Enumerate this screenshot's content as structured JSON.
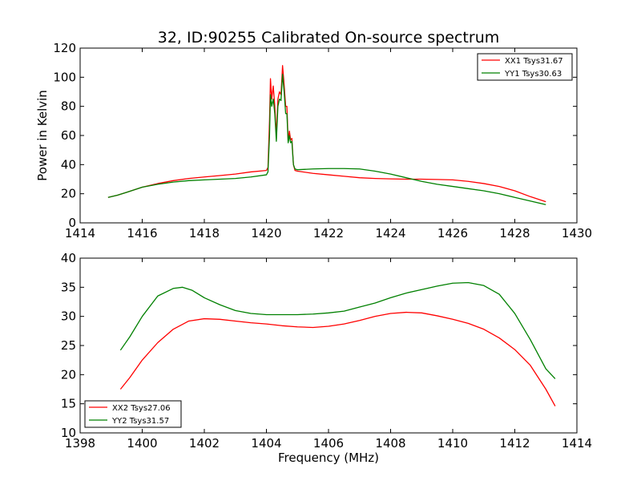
{
  "title": "32, ID:90255 Calibrated On-source spectrum",
  "colors": {
    "xx": "#ff0000",
    "yy": "#008000"
  },
  "chart_data": [
    {
      "type": "line",
      "title": "32, ID:90255 Calibrated On-source spectrum",
      "xlabel": "",
      "ylabel": "Power in Kelvin",
      "xlim": [
        1414,
        1430
      ],
      "ylim": [
        0,
        120
      ],
      "xticks": [
        1414,
        1416,
        1418,
        1420,
        1422,
        1424,
        1426,
        1428,
        1430
      ],
      "yticks": [
        0,
        20,
        40,
        60,
        80,
        100,
        120
      ],
      "legend_position": "top-right",
      "grid": false,
      "series": [
        {
          "name": "XX1 Tsys31.67",
          "color": "#ff0000",
          "points": [
            [
              1414.9,
              17.5
            ],
            [
              1415.2,
              19
            ],
            [
              1415.5,
              21
            ],
            [
              1416,
              24.5
            ],
            [
              1416.5,
              27
            ],
            [
              1417,
              29
            ],
            [
              1417.5,
              30.5
            ],
            [
              1418,
              31.5
            ],
            [
              1418.5,
              32.5
            ],
            [
              1419,
              33.5
            ],
            [
              1419.5,
              35
            ],
            [
              1420,
              36
            ],
            [
              1420.05,
              38
            ],
            [
              1420.1,
              70
            ],
            [
              1420.13,
              99
            ],
            [
              1420.17,
              85
            ],
            [
              1420.22,
              94
            ],
            [
              1420.27,
              80
            ],
            [
              1420.32,
              60
            ],
            [
              1420.37,
              85
            ],
            [
              1420.42,
              90
            ],
            [
              1420.47,
              88
            ],
            [
              1420.52,
              108
            ],
            [
              1420.57,
              95
            ],
            [
              1420.62,
              80
            ],
            [
              1420.66,
              80
            ],
            [
              1420.7,
              56
            ],
            [
              1420.74,
              63
            ],
            [
              1420.78,
              57
            ],
            [
              1420.82,
              58
            ],
            [
              1420.87,
              40
            ],
            [
              1420.92,
              36
            ],
            [
              1421,
              35.5
            ],
            [
              1421.5,
              34
            ],
            [
              1422,
              33
            ],
            [
              1422.5,
              32
            ],
            [
              1423,
              31
            ],
            [
              1423.5,
              30.5
            ],
            [
              1424,
              30.2
            ],
            [
              1424.5,
              30
            ],
            [
              1425,
              30
            ],
            [
              1425.5,
              29.8
            ],
            [
              1426,
              29.5
            ],
            [
              1426.5,
              28.5
            ],
            [
              1427,
              27
            ],
            [
              1427.5,
              25
            ],
            [
              1428,
              22
            ],
            [
              1428.5,
              18
            ],
            [
              1429,
              14.5
            ]
          ]
        },
        {
          "name": "YY1 Tsys30.63",
          "color": "#008000",
          "points": [
            [
              1414.9,
              17.5
            ],
            [
              1415.2,
              19
            ],
            [
              1415.5,
              21
            ],
            [
              1416,
              24.5
            ],
            [
              1416.5,
              26.5
            ],
            [
              1417,
              28
            ],
            [
              1417.5,
              29
            ],
            [
              1418,
              29.5
            ],
            [
              1418.5,
              30
            ],
            [
              1419,
              30.5
            ],
            [
              1419.5,
              31.5
            ],
            [
              1420,
              33
            ],
            [
              1420.05,
              35
            ],
            [
              1420.1,
              60
            ],
            [
              1420.13,
              88
            ],
            [
              1420.17,
              80
            ],
            [
              1420.22,
              85
            ],
            [
              1420.27,
              75
            ],
            [
              1420.32,
              56
            ],
            [
              1420.37,
              80
            ],
            [
              1420.42,
              85
            ],
            [
              1420.47,
              84
            ],
            [
              1420.52,
              102
            ],
            [
              1420.57,
              90
            ],
            [
              1420.62,
              75
            ],
            [
              1420.66,
              75
            ],
            [
              1420.7,
              55
            ],
            [
              1420.74,
              60
            ],
            [
              1420.78,
              55
            ],
            [
              1420.82,
              56
            ],
            [
              1420.87,
              40
            ],
            [
              1420.92,
              37
            ],
            [
              1421,
              36.5
            ],
            [
              1421.5,
              37
            ],
            [
              1422,
              37.3
            ],
            [
              1422.5,
              37.3
            ],
            [
              1423,
              37
            ],
            [
              1423.5,
              35.5
            ],
            [
              1424,
              33.5
            ],
            [
              1424.5,
              31
            ],
            [
              1425,
              28.5
            ],
            [
              1425.5,
              26.5
            ],
            [
              1426,
              25
            ],
            [
              1426.5,
              23.5
            ],
            [
              1427,
              22
            ],
            [
              1427.5,
              20
            ],
            [
              1428,
              17.5
            ],
            [
              1428.5,
              15
            ],
            [
              1429,
              12.5
            ]
          ]
        }
      ]
    },
    {
      "type": "line",
      "title": "",
      "xlabel": "Frequency (MHz)",
      "ylabel": "",
      "xlim": [
        1398,
        1414
      ],
      "ylim": [
        10,
        40
      ],
      "xticks": [
        1398,
        1400,
        1402,
        1404,
        1406,
        1408,
        1410,
        1412,
        1414
      ],
      "yticks": [
        10,
        15,
        20,
        25,
        30,
        35,
        40
      ],
      "legend_position": "bottom-left",
      "grid": false,
      "series": [
        {
          "name": "XX2 Tsys27.06",
          "color": "#ff0000",
          "points": [
            [
              1399.3,
              17.5
            ],
            [
              1399.6,
              19.5
            ],
            [
              1400,
              22.5
            ],
            [
              1400.5,
              25.5
            ],
            [
              1401,
              27.8
            ],
            [
              1401.5,
              29.2
            ],
            [
              1402,
              29.6
            ],
            [
              1402.5,
              29.5
            ],
            [
              1403,
              29.2
            ],
            [
              1403.5,
              28.9
            ],
            [
              1404,
              28.7
            ],
            [
              1404.5,
              28.4
            ],
            [
              1405,
              28.2
            ],
            [
              1405.5,
              28.1
            ],
            [
              1406,
              28.3
            ],
            [
              1406.5,
              28.7
            ],
            [
              1407,
              29.3
            ],
            [
              1407.5,
              30.0
            ],
            [
              1408,
              30.5
            ],
            [
              1408.5,
              30.7
            ],
            [
              1409,
              30.6
            ],
            [
              1409.5,
              30.1
            ],
            [
              1410,
              29.5
            ],
            [
              1410.5,
              28.8
            ],
            [
              1411,
              27.8
            ],
            [
              1411.5,
              26.3
            ],
            [
              1412,
              24.3
            ],
            [
              1412.5,
              21.6
            ],
            [
              1413,
              17.5
            ],
            [
              1413.3,
              14.6
            ]
          ]
        },
        {
          "name": "YY2 Tsys31.57",
          "color": "#008000",
          "points": [
            [
              1399.3,
              24.2
            ],
            [
              1399.6,
              26.5
            ],
            [
              1400,
              30
            ],
            [
              1400.5,
              33.5
            ],
            [
              1401,
              34.8
            ],
            [
              1401.3,
              35
            ],
            [
              1401.6,
              34.5
            ],
            [
              1402,
              33.2
            ],
            [
              1402.5,
              32
            ],
            [
              1403,
              31
            ],
            [
              1403.5,
              30.5
            ],
            [
              1404,
              30.3
            ],
            [
              1404.5,
              30.3
            ],
            [
              1405,
              30.3
            ],
            [
              1405.5,
              30.4
            ],
            [
              1406,
              30.6
            ],
            [
              1406.5,
              30.9
            ],
            [
              1407,
              31.6
            ],
            [
              1407.5,
              32.3
            ],
            [
              1408,
              33.2
            ],
            [
              1408.5,
              34
            ],
            [
              1409,
              34.6
            ],
            [
              1409.5,
              35.2
            ],
            [
              1410,
              35.7
            ],
            [
              1410.5,
              35.8
            ],
            [
              1411,
              35.3
            ],
            [
              1411.5,
              33.8
            ],
            [
              1412,
              30.5
            ],
            [
              1412.5,
              26
            ],
            [
              1413,
              21
            ],
            [
              1413.3,
              19.3
            ]
          ]
        }
      ]
    }
  ]
}
